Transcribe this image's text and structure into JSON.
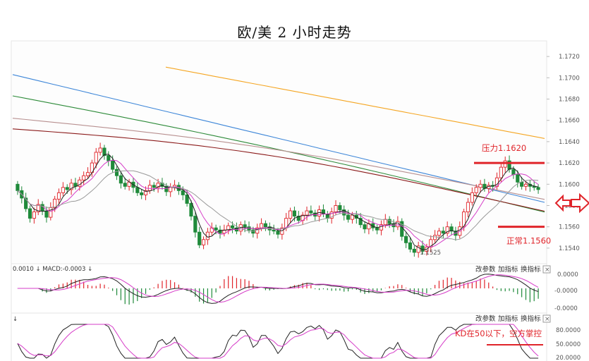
{
  "title": "欧/美 2 小时走势",
  "chart_data": [
    {
      "type": "candlestick",
      "title": "欧/美 2 小时走势",
      "y_ticks": [
        "1.1720",
        "1.1700",
        "1.1680",
        "1.1660",
        "1.1640",
        "1.1620",
        "1.1600",
        "1.1580",
        "1.1560",
        "1.1540"
      ],
      "ylim": [
        1.1528,
        1.1732
      ],
      "grid": false,
      "closes": [
        1.1594,
        1.1587,
        1.1577,
        1.1568,
        1.1574,
        1.1581,
        1.1575,
        1.1569,
        1.1578,
        1.1586,
        1.1592,
        1.1597,
        1.1595,
        1.1601,
        1.1598,
        1.1604,
        1.1608,
        1.1611,
        1.162,
        1.163,
        1.1634,
        1.1627,
        1.1622,
        1.1614,
        1.1608,
        1.1601,
        1.1598,
        1.1602,
        1.1597,
        1.1592,
        1.159,
        1.1594,
        1.1599,
        1.1597,
        1.1601,
        1.1598,
        1.1593,
        1.1597,
        1.1599,
        1.1594,
        1.159,
        1.1582,
        1.157,
        1.1555,
        1.1543,
        1.1548,
        1.1555,
        1.1559,
        1.1557,
        1.1554,
        1.1557,
        1.1561,
        1.1559,
        1.1556,
        1.1562,
        1.156,
        1.1557,
        1.1554,
        1.1559,
        1.1563,
        1.156,
        1.1557,
        1.1556,
        1.1553,
        1.1559,
        1.1568,
        1.1575,
        1.157,
        1.1566,
        1.1571,
        1.1575,
        1.1573,
        1.157,
        1.1576,
        1.1572,
        1.1568,
        1.1574,
        1.158,
        1.1576,
        1.1571,
        1.1567,
        1.1571,
        1.1568,
        1.1562,
        1.1558,
        1.1563,
        1.1559,
        1.1557,
        1.1562,
        1.1567,
        1.1563,
        1.156,
        1.1565,
        1.1551,
        1.1545,
        1.1539,
        1.1536,
        1.1542,
        1.1537,
        1.1541,
        1.1548,
        1.1552,
        1.1556,
        1.1554,
        1.156,
        1.1556,
        1.1552,
        1.156,
        1.1574,
        1.1583,
        1.1592,
        1.1597,
        1.16,
        1.1596,
        1.1599,
        1.1598,
        1.1606,
        1.1616,
        1.1622,
        1.1614,
        1.1609,
        1.1602,
        1.1598,
        1.16,
        1.1598,
        1.1597,
        1.1595
      ],
      "candle_range_label": "1.1525",
      "moving_averages": [
        {
          "color": "#f5a623",
          "from": 1.171,
          "to": 1.1643
        },
        {
          "color": "#3d86d8",
          "from": 1.1703,
          "to": 1.1583
        },
        {
          "color": "#2e8b3a",
          "from": 1.1683,
          "to": 1.1575
        },
        {
          "color": "#b89090",
          "from": 1.1662,
          "to": 1.1588
        },
        {
          "color": "#8b1a1a",
          "from": 1.1652,
          "to": 1.1578
        }
      ],
      "annotations": [
        {
          "text": "压力1.1620",
          "level": 1.162,
          "color": "#e0242a"
        },
        {
          "text": "正常1.1560",
          "level": 1.156,
          "color": "#e0242a"
        }
      ]
    },
    {
      "type": "line",
      "panel": "MACD",
      "header_left": "0.0010 ↓  MACD:-0.0003 ↓",
      "y_ticks": [
        "0.0000",
        "-0.0000",
        "-0.0000"
      ],
      "buttons": [
        "改参数",
        "加指标",
        "换指标"
      ]
    },
    {
      "type": "line",
      "panel": "KD",
      "header_left": "↓",
      "y_ticks": [
        "80.0000",
        "50.0000",
        "20.0000"
      ],
      "buttons": [
        "改参数",
        "加指标",
        "换指标"
      ],
      "annotation": "KD在50以下，空方掌控",
      "level": 50
    }
  ]
}
